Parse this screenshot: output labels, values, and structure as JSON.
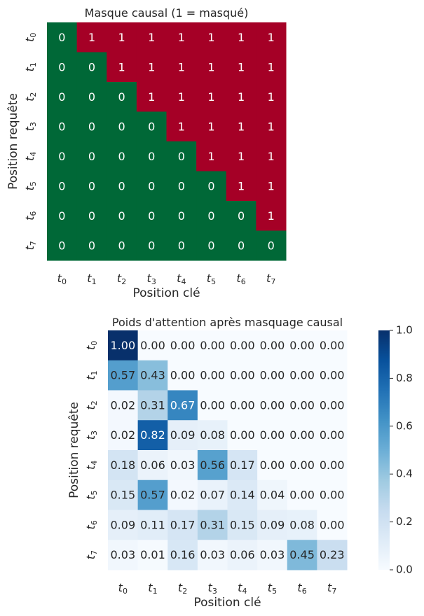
{
  "chart_data": [
    {
      "type": "heatmap",
      "title": "Masque causal (1 = masqué)",
      "xlabel": "Position clé",
      "ylabel": "Position requête",
      "x_ticks": [
        "t0",
        "t1",
        "t2",
        "t3",
        "t4",
        "t5",
        "t6",
        "t7"
      ],
      "y_ticks": [
        "t0",
        "t1",
        "t2",
        "t3",
        "t4",
        "t5",
        "t6",
        "t7"
      ],
      "colormap": "RdYlGn_r",
      "colors": {
        "zero": "#006837",
        "one": "#a50026"
      },
      "values": [
        [
          0,
          1,
          1,
          1,
          1,
          1,
          1,
          1
        ],
        [
          0,
          0,
          1,
          1,
          1,
          1,
          1,
          1
        ],
        [
          0,
          0,
          0,
          1,
          1,
          1,
          1,
          1
        ],
        [
          0,
          0,
          0,
          0,
          1,
          1,
          1,
          1
        ],
        [
          0,
          0,
          0,
          0,
          0,
          1,
          1,
          1
        ],
        [
          0,
          0,
          0,
          0,
          0,
          0,
          1,
          1
        ],
        [
          0,
          0,
          0,
          0,
          0,
          0,
          0,
          1
        ],
        [
          0,
          0,
          0,
          0,
          0,
          0,
          0,
          0
        ]
      ],
      "annotations": [
        [
          "0",
          "1",
          "1",
          "1",
          "1",
          "1",
          "1",
          "1"
        ],
        [
          "0",
          "0",
          "1",
          "1",
          "1",
          "1",
          "1",
          "1"
        ],
        [
          "0",
          "0",
          "0",
          "1",
          "1",
          "1",
          "1",
          "1"
        ],
        [
          "0",
          "0",
          "0",
          "0",
          "1",
          "1",
          "1",
          "1"
        ],
        [
          "0",
          "0",
          "0",
          "0",
          "0",
          "1",
          "1",
          "1"
        ],
        [
          "0",
          "0",
          "0",
          "0",
          "0",
          "0",
          "1",
          "1"
        ],
        [
          "0",
          "0",
          "0",
          "0",
          "0",
          "0",
          "0",
          "1"
        ],
        [
          "0",
          "0",
          "0",
          "0",
          "0",
          "0",
          "0",
          "0"
        ]
      ]
    },
    {
      "type": "heatmap",
      "title": "Poids d'attention après masquage causal",
      "xlabel": "Position clé",
      "ylabel": "Position requête",
      "x_ticks": [
        "t0",
        "t1",
        "t2",
        "t3",
        "t4",
        "t5",
        "t6",
        "t7"
      ],
      "y_ticks": [
        "t0",
        "t1",
        "t2",
        "t3",
        "t4",
        "t5",
        "t6",
        "t7"
      ],
      "colormap": "Blues",
      "vmin": 0.0,
      "vmax": 1.0,
      "colorbar_ticks": [
        "0.0",
        "0.2",
        "0.4",
        "0.6",
        "0.8",
        "1.0"
      ],
      "values": [
        [
          1.0,
          0.0,
          0.0,
          0.0,
          0.0,
          0.0,
          0.0,
          0.0
        ],
        [
          0.57,
          0.43,
          0.0,
          0.0,
          0.0,
          0.0,
          0.0,
          0.0
        ],
        [
          0.02,
          0.31,
          0.67,
          0.0,
          0.0,
          0.0,
          0.0,
          0.0
        ],
        [
          0.02,
          0.82,
          0.09,
          0.08,
          0.0,
          0.0,
          0.0,
          0.0
        ],
        [
          0.18,
          0.06,
          0.03,
          0.56,
          0.17,
          0.0,
          0.0,
          0.0
        ],
        [
          0.15,
          0.57,
          0.02,
          0.07,
          0.14,
          0.04,
          0.0,
          0.0
        ],
        [
          0.09,
          0.11,
          0.17,
          0.31,
          0.15,
          0.09,
          0.08,
          0.0
        ],
        [
          0.03,
          0.01,
          0.16,
          0.03,
          0.06,
          0.03,
          0.45,
          0.23
        ]
      ],
      "annotations": [
        [
          "1.00",
          "0.00",
          "0.00",
          "0.00",
          "0.00",
          "0.00",
          "0.00",
          "0.00"
        ],
        [
          "0.57",
          "0.43",
          "0.00",
          "0.00",
          "0.00",
          "0.00",
          "0.00",
          "0.00"
        ],
        [
          "0.02",
          "0.31",
          "0.67",
          "0.00",
          "0.00",
          "0.00",
          "0.00",
          "0.00"
        ],
        [
          "0.02",
          "0.82",
          "0.09",
          "0.08",
          "0.00",
          "0.00",
          "0.00",
          "0.00"
        ],
        [
          "0.18",
          "0.06",
          "0.03",
          "0.56",
          "0.17",
          "0.00",
          "0.00",
          "0.00"
        ],
        [
          "0.15",
          "0.57",
          "0.02",
          "0.07",
          "0.14",
          "0.04",
          "0.00",
          "0.00"
        ],
        [
          "0.09",
          "0.11",
          "0.17",
          "0.31",
          "0.15",
          "0.09",
          "0.08",
          "0.00"
        ],
        [
          "0.03",
          "0.01",
          "0.16",
          "0.03",
          "0.06",
          "0.03",
          "0.45",
          "0.23"
        ]
      ]
    }
  ]
}
